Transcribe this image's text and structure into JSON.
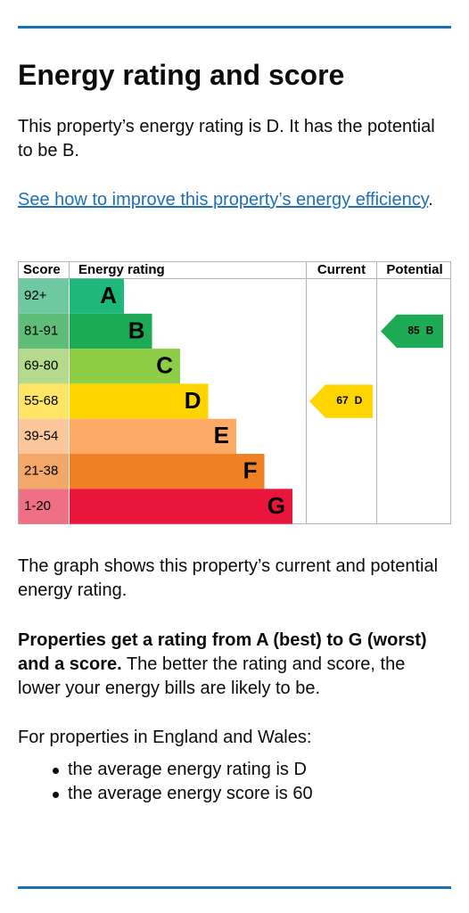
{
  "title": "Energy rating and score",
  "intro": "This property’s energy rating is D. It has the potential to be B.",
  "link": {
    "text": "See how to improve this property’s energy efficiency",
    "suffix": "."
  },
  "graph": {
    "headers": [
      "Score",
      "Energy rating",
      "Current",
      "Potential"
    ],
    "bands": [
      {
        "score": "92+",
        "letter": "A",
        "color": "#1eb87a",
        "score_color": "#6fc9a0"
      },
      {
        "score": "81-91",
        "letter": "B",
        "color": "#1eab55",
        "score_color": "#5fbd78"
      },
      {
        "score": "69-80",
        "letter": "C",
        "color": "#8dce46",
        "score_color": "#b4db8b"
      },
      {
        "score": "55-68",
        "letter": "D",
        "color": "#ffd500",
        "score_color": "#ffe566"
      },
      {
        "score": "39-54",
        "letter": "E",
        "color": "#fcaa65",
        "score_color": "#fcc79a"
      },
      {
        "score": "21-38",
        "letter": "F",
        "color": "#ef8023",
        "score_color": "#f3a86a"
      },
      {
        "score": "1-20",
        "letter": "G",
        "color": "#e9153b",
        "score_color": "#ef6f84"
      }
    ],
    "current": {
      "score": 67,
      "letter": "D"
    },
    "potential": {
      "score": 85,
      "letter": "B"
    }
  },
  "graph_caption": "The graph shows this property’s current and potential energy rating.",
  "rating_note": {
    "bold": "Properties get a rating from A (best) to G (worst) and a score.",
    "text": " The better the rating and score, the lower your energy bills are likely to be."
  },
  "average_intro": "For properties in England and Wales:",
  "averages": [
    "the average energy rating is D",
    "the average energy score is 60"
  ]
}
